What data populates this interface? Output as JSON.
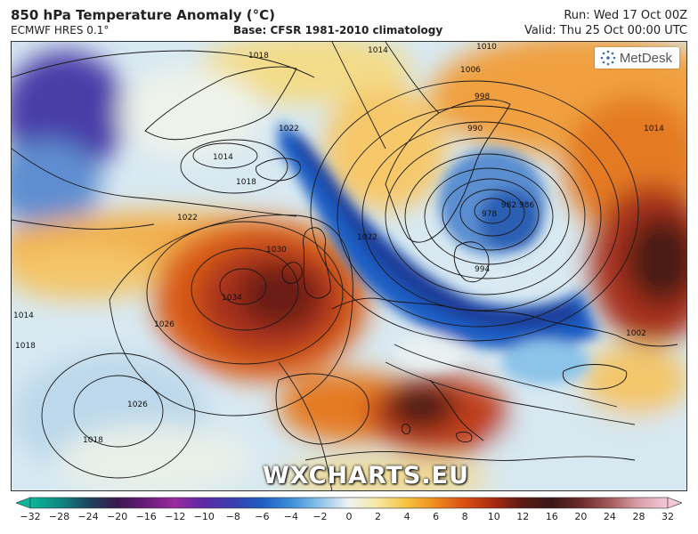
{
  "header": {
    "title": "850 hPa Temperature Anomaly (°C)",
    "model": "ECMWF HRES 0.1°",
    "base": "Base: CFSR 1981-2010 climatology",
    "run": "Run: Wed 17 Oct 00Z",
    "valid": "Valid: Thu 25 Oct 00:00 UTC"
  },
  "logo": {
    "text": "MetDesk"
  },
  "watermark": "WXCHARTS.EU",
  "isobars": {
    "labels": [
      "1010",
      "1006",
      "998",
      "990",
      "986",
      "982",
      "978",
      "994",
      "1014",
      "1018",
      "1022",
      "1026",
      "1030",
      "1034",
      "1002",
      "1018",
      "1014",
      "1022",
      "1026",
      "1018",
      "1018",
      "1014",
      "1022",
      "1014"
    ]
  },
  "colorbar": {
    "ticks": [
      "−32",
      "−28",
      "−24",
      "−20",
      "−16",
      "−12",
      "−10",
      "−8",
      "−6",
      "−4",
      "−2",
      "0",
      "2",
      "4",
      "6",
      "8",
      "10",
      "12",
      "16",
      "20",
      "24",
      "28",
      "32"
    ],
    "colors": [
      "#0fb59a",
      "#0e8a84",
      "#1d4560",
      "#3b1a4e",
      "#6a1b7a",
      "#9a2a9e",
      "#5a2aa6",
      "#3a3fb0",
      "#1f5fc4",
      "#3c8fd8",
      "#8cc3e8",
      "#eef3f2",
      "#f6e7a0",
      "#f6c13e",
      "#ee8a1c",
      "#d94e12",
      "#a82a10",
      "#5a1a14",
      "#3a1818",
      "#6b2a2a",
      "#a45a5a",
      "#d9a0a8",
      "#f4c8d8"
    ]
  }
}
